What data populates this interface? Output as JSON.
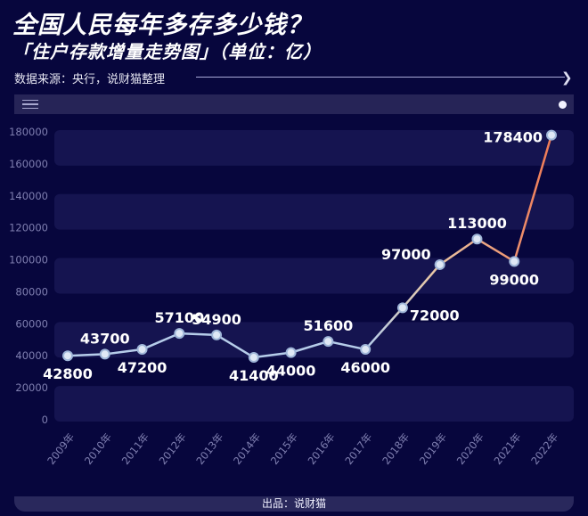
{
  "header": {
    "title": "全国人民每年多存多少钱？",
    "subtitle": "「住户存款增量走势图」（单位：亿）",
    "source": "数据来源：央行，说财猫整理",
    "arrow_icon": "chevron-right-icon"
  },
  "toolbar": {
    "menu_icon": "hamburger-menu-icon",
    "indicator_icon": "dot-icon"
  },
  "footer": {
    "credit": "出品：说财猫"
  },
  "colors": {
    "background": "#07063d",
    "band": "#151450",
    "line_start": "#b6cdea",
    "line_end": "#f07a55",
    "axis_text": "#7f7fb0",
    "label_text": "#ffffff"
  },
  "chart_data": {
    "type": "line",
    "title": "全国人民每年多存多少钱？「住户存款增量走势图」（单位：亿）",
    "xlabel": "",
    "ylabel": "",
    "categories": [
      "2009年",
      "2010年",
      "2011年",
      "2012年",
      "2013年",
      "2014年",
      "2015年",
      "2016年",
      "2017年",
      "2018年",
      "2019年",
      "2020年",
      "2021年",
      "2022年"
    ],
    "values": [
      42800,
      43700,
      47200,
      57100,
      54900,
      41400,
      44000,
      51600,
      46000,
      72000,
      97000,
      113000,
      99000,
      178400
    ],
    "plotted_y": [
      40000,
      41000,
      44000,
      54000,
      53000,
      39000,
      42000,
      49000,
      44000,
      70000,
      97000,
      113000,
      99000,
      178000
    ],
    "label_positions": [
      "below",
      "above",
      "below",
      "above",
      "above",
      "below",
      "below",
      "above",
      "below",
      "right",
      "left",
      "above",
      "below",
      "left"
    ],
    "yticks": [
      0,
      20000,
      40000,
      60000,
      80000,
      100000,
      120000,
      140000,
      160000,
      180000
    ],
    "ylim": [
      0,
      180000
    ],
    "grid": "alternating horizontal bands",
    "legend": null
  }
}
